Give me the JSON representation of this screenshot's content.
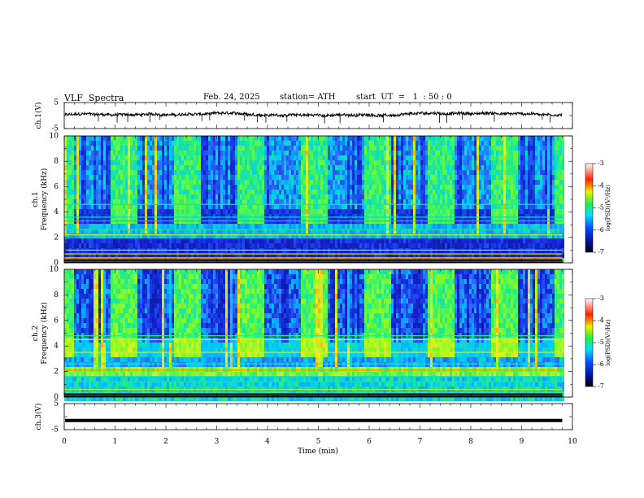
{
  "header": {
    "title": "VLF  Spectra",
    "date": "Feb. 24, 2025",
    "station": "station= ATH",
    "start": "start  UT  =   1  : 50 : 0"
  },
  "chart_data": [
    {
      "type": "line",
      "name": "ch1-waveform",
      "ylabel": "ch.1(V)",
      "ylim": [
        -5,
        5
      ],
      "yticks": [
        "5",
        "-5"
      ],
      "xlim": [
        0,
        10
      ],
      "description_of_trace": "noisy waveform centred slightly above zero, amplitude about 1 V"
    },
    {
      "type": "heatmap",
      "name": "ch1-spectrogram",
      "ylabel": "ch.1\nFrequency  (kHz)",
      "ylim": [
        0,
        10
      ],
      "yticks": [
        "0",
        "2",
        "4",
        "6",
        "8",
        "10"
      ],
      "xlim": [
        0,
        10
      ],
      "colorbar": {
        "label": "log(PSD)(V²/Hz)",
        "range": [
          -7,
          -3
        ],
        "ticks": [
          "-3",
          "-4",
          "-5",
          "-6",
          "-7"
        ]
      }
    },
    {
      "type": "heatmap",
      "name": "ch2-spectrogram",
      "ylabel": "ch.2\nFrequency  (kHz)",
      "ylim": [
        0,
        10
      ],
      "yticks": [
        "0",
        "2",
        "4",
        "6",
        "8",
        "10"
      ],
      "xlim": [
        0,
        10
      ],
      "colorbar": {
        "label": "log(PSD)(V²/Hz)",
        "range": [
          -7,
          -3
        ],
        "ticks": [
          "-3",
          "-4",
          "-5",
          "-6",
          "-7"
        ]
      }
    },
    {
      "type": "line",
      "name": "ch3-waveform",
      "ylabel": "ch.3(V)",
      "ylim": [
        -5,
        5
      ],
      "yticks": [
        "5",
        "-5"
      ],
      "xlim": [
        0,
        10
      ],
      "description_of_trace": "flat thick line near -1.5 V"
    }
  ],
  "xaxis": {
    "label": "Time  (min)",
    "ticks": [
      "0",
      "1",
      "2",
      "3",
      "4",
      "5",
      "6",
      "7",
      "8",
      "9",
      "10"
    ],
    "data_end_min": 9.8
  },
  "colors": {
    "trace": "#000000",
    "bg_deep": "#0a1090",
    "bg_blue": "#1e3cff",
    "cyan": "#00c8ff",
    "green": "#30f060",
    "yellow": "#f0f020",
    "red": "#ff2020"
  }
}
